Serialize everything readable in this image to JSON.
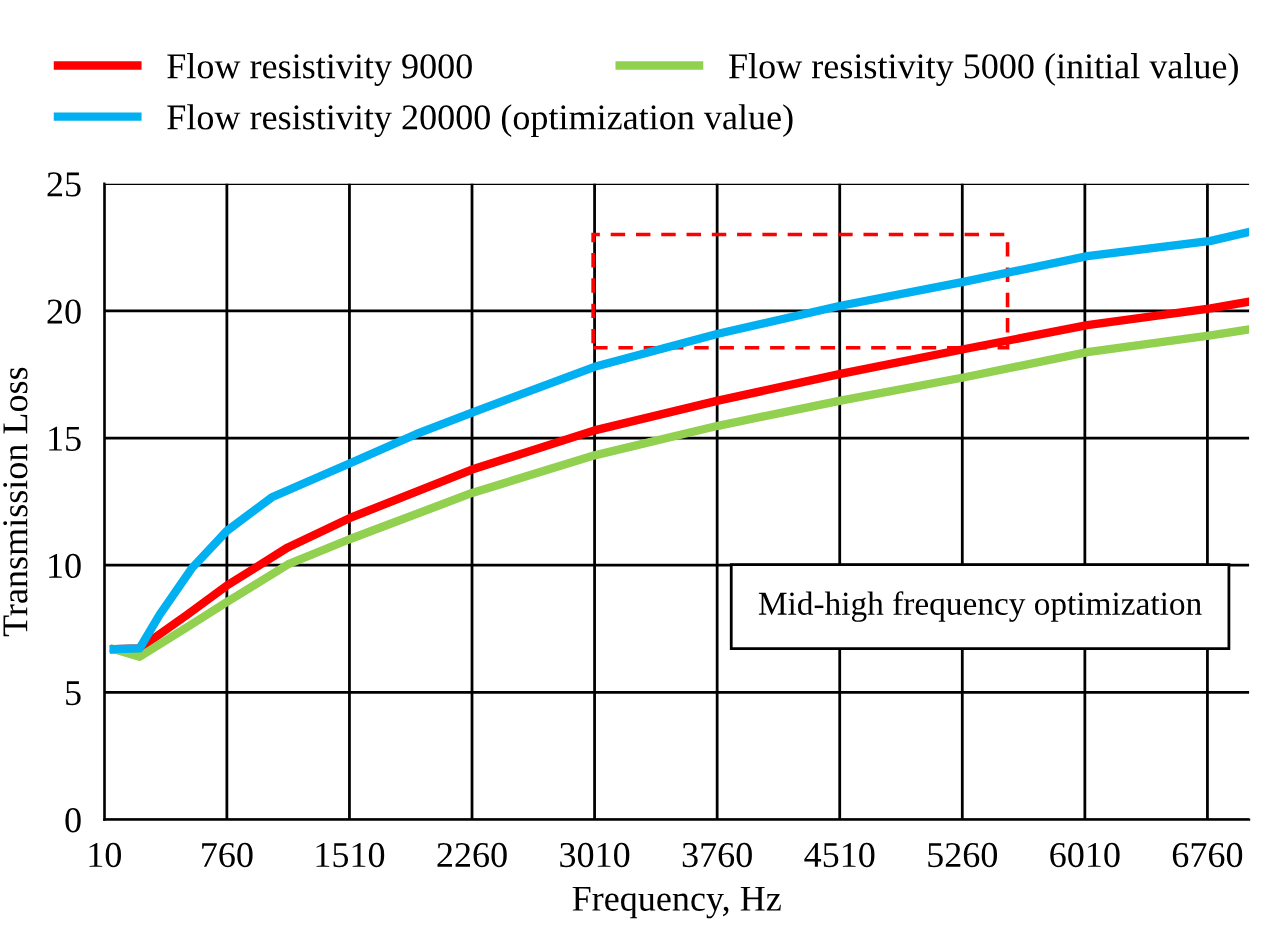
{
  "chart_data": {
    "type": "line",
    "xlabel": "Frequency, Hz",
    "ylabel": "Transmission Loss",
    "xlim": [
      10,
      7015
    ],
    "xticks": [
      10,
      760,
      1510,
      2260,
      3010,
      3760,
      4510,
      5260,
      6010,
      6760
    ],
    "ylim": [
      0,
      25
    ],
    "yticks": [
      0,
      5,
      10,
      15,
      20,
      25
    ],
    "grid": true,
    "legend": "top",
    "line_style": "solid",
    "marker": "none",
    "annotations": [
      "Mid-high frequency optimization"
    ],
    "series": [
      {
        "name": "Flow resistivity 9000",
        "color": "#ff0000",
        "x": [
          69,
          226,
          516,
          760,
          1133,
          1510,
          2260,
          3010,
          3765,
          4515,
          5275,
          6025,
          6780,
          7015
        ],
        "values": [
          6.7,
          6.73,
          8.05,
          9.2,
          10.7,
          11.85,
          13.76,
          15.3,
          16.47,
          17.52,
          18.5,
          19.44,
          20.1,
          20.36
        ]
      },
      {
        "name": "Flow resistivity 5000 (initial value)",
        "color": "#92d050",
        "x": [
          69,
          226,
          516,
          760,
          1133,
          1510,
          2260,
          3010,
          3765,
          4515,
          5275,
          6025,
          6780,
          7015
        ],
        "values": [
          6.7,
          6.4,
          7.56,
          8.55,
          10.03,
          11.02,
          12.84,
          14.32,
          15.48,
          16.47,
          17.39,
          18.38,
          19.04,
          19.27
        ]
      },
      {
        "name": "Flow resistivity 20000 (optimization value)",
        "color": "#00b0f0",
        "x": [
          69,
          226,
          348,
          544,
          760,
          1035,
          1510,
          1917,
          2260,
          3010,
          3765,
          4515,
          5275,
          6025,
          6780,
          7015
        ],
        "values": [
          6.7,
          6.73,
          8.05,
          9.87,
          11.35,
          12.67,
          14.0,
          15.15,
          16.0,
          17.8,
          19.1,
          20.2,
          21.15,
          22.15,
          22.75,
          23.1
        ]
      }
    ]
  }
}
